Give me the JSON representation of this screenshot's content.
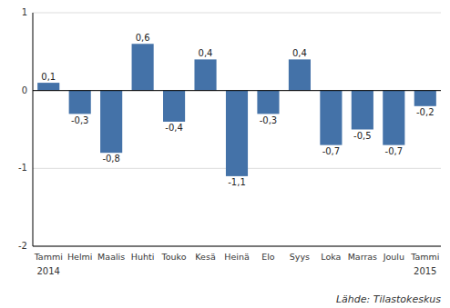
{
  "chart_data": {
    "type": "bar",
    "categories": [
      "Tammi",
      "Helmi",
      "Maalis",
      "Huhti",
      "Touko",
      "Kesä",
      "Heinä",
      "Elo",
      "Syys",
      "Loka",
      "Marras",
      "Joulu",
      "Tammi"
    ],
    "values": [
      0.1,
      -0.3,
      -0.8,
      0.6,
      -0.4,
      0.4,
      -1.1,
      -0.3,
      0.4,
      -0.7,
      -0.5,
      -0.7,
      -0.2
    ],
    "value_labels": [
      "0,1",
      "-0,3",
      "-0,8",
      "0,6",
      "-0,4",
      "0,4",
      "-1,1",
      "-0,3",
      "0,4",
      "-0,7",
      "-0,5",
      "-0,7",
      "-0,2"
    ],
    "color": "#4472a8",
    "ylim": [
      -2,
      1
    ],
    "yticks": [
      -2,
      -1,
      0,
      1
    ],
    "grid": true,
    "data_labels": true,
    "annotations": [
      "2014",
      "2015"
    ],
    "source": "Lähde: Tilastokeskus"
  }
}
